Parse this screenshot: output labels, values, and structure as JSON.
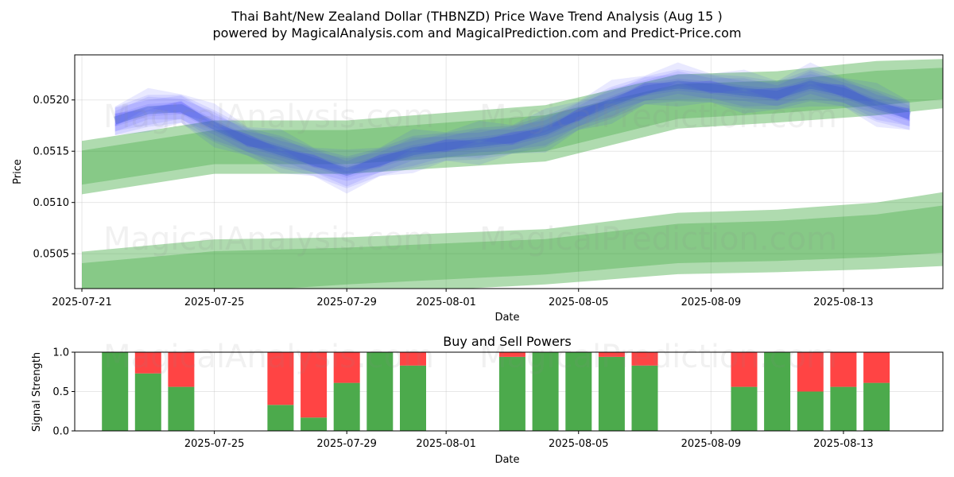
{
  "header": {
    "title": "Thai Baht/New Zealand Dollar (THBNZD) Price Wave Trend Analysis (Aug 15 )",
    "subtitle": "powered by MagicalAnalysis.com and MagicalPrediction.com and Predict-Price.com"
  },
  "watermarks": [
    "MagicalAnalysis.com",
    "MagicalPrediction.com"
  ],
  "colors": {
    "wave": "#3333ff",
    "band": "#2ca02c",
    "buy": "#4caa4c",
    "sell": "#ff4444"
  },
  "chart_data": [
    {
      "type": "area",
      "xlabel": "Date",
      "ylabel": "Price",
      "x_start": "2025-07-21",
      "xlim": [
        "2025-07-21",
        "2025-08-16"
      ],
      "ylim": [
        0.05016,
        0.05244
      ],
      "x_ticks": [
        "2025-07-21",
        "2025-07-25",
        "2025-07-29",
        "2025-08-01",
        "2025-08-05",
        "2025-08-09",
        "2025-08-13"
      ],
      "y_ticks": [
        "0.0505",
        "0.0510",
        "0.0515",
        "0.0520"
      ],
      "grid": true,
      "upper_band": {
        "x": [
          "2025-07-21",
          "2025-07-25",
          "2025-07-29",
          "2025-08-04",
          "2025-08-08",
          "2025-08-11",
          "2025-08-14",
          "2025-08-16"
        ],
        "outer_high": [
          0.0516,
          0.0518,
          0.0518,
          0.05195,
          0.05225,
          0.05228,
          0.05238,
          0.0524
        ],
        "outer_low": [
          0.05108,
          0.05128,
          0.05128,
          0.0514,
          0.05172,
          0.05178,
          0.05185,
          0.05192
        ]
      },
      "lower_band": {
        "x": [
          "2025-07-21",
          "2025-07-25",
          "2025-07-29",
          "2025-08-04",
          "2025-08-08",
          "2025-08-11",
          "2025-08-14",
          "2025-08-16"
        ],
        "outer_high": [
          0.05052,
          0.05064,
          0.05066,
          0.05074,
          0.0509,
          0.05093,
          0.051,
          0.0511
        ],
        "outer_low": [
          0.0499,
          0.05,
          0.0501,
          0.0502,
          0.0503,
          0.05032,
          0.05035,
          0.05038
        ]
      },
      "price_wave": {
        "x": [
          "2025-07-22",
          "2025-07-23",
          "2025-07-24",
          "2025-07-25",
          "2025-07-26",
          "2025-07-27",
          "2025-07-28",
          "2025-07-29",
          "2025-07-30",
          "2025-07-31",
          "2025-08-01",
          "2025-08-02",
          "2025-08-03",
          "2025-08-04",
          "2025-08-05",
          "2025-08-06",
          "2025-08-07",
          "2025-08-08",
          "2025-08-09",
          "2025-08-10",
          "2025-08-11",
          "2025-08-12",
          "2025-08-13",
          "2025-08-14",
          "2025-08-15"
        ],
        "values": [
          0.0518,
          0.0519,
          0.05192,
          0.05175,
          0.0516,
          0.0515,
          0.0514,
          0.0513,
          0.0514,
          0.0515,
          0.05155,
          0.05158,
          0.05162,
          0.0517,
          0.05185,
          0.05198,
          0.0521,
          0.05215,
          0.05212,
          0.05208,
          0.05205,
          0.05215,
          0.05208,
          0.05195,
          0.05185
        ]
      }
    },
    {
      "type": "bar",
      "title": "Buy and Sell Powers",
      "xlabel": "Date",
      "ylabel": "Signal Strength",
      "ylim": [
        0,
        1
      ],
      "y_ticks": [
        "0.0",
        "0.5",
        "1.0"
      ],
      "x_ticks": [
        "2025-07-25",
        "2025-07-29",
        "2025-08-01",
        "2025-08-05",
        "2025-08-09",
        "2025-08-13"
      ],
      "dates": [
        "2025-07-22",
        "2025-07-23",
        "2025-07-24",
        "2025-07-27",
        "2025-07-28",
        "2025-07-29",
        "2025-07-30",
        "2025-07-31",
        "2025-08-03",
        "2025-08-04",
        "2025-08-05",
        "2025-08-06",
        "2025-08-07",
        "2025-08-10",
        "2025-08-11",
        "2025-08-12",
        "2025-08-13",
        "2025-08-14"
      ],
      "buy": [
        1.0,
        0.73,
        0.56,
        0.33,
        0.17,
        0.61,
        1.0,
        0.83,
        0.94,
        1.0,
        1.0,
        0.94,
        0.83,
        0.56,
        1.0,
        0.5,
        0.56,
        0.61
      ],
      "sell": [
        0.0,
        0.27,
        0.44,
        0.67,
        0.83,
        0.39,
        0.0,
        0.17,
        0.06,
        0.0,
        0.0,
        0.06,
        0.17,
        0.44,
        0.0,
        0.5,
        0.44,
        0.39
      ]
    }
  ]
}
